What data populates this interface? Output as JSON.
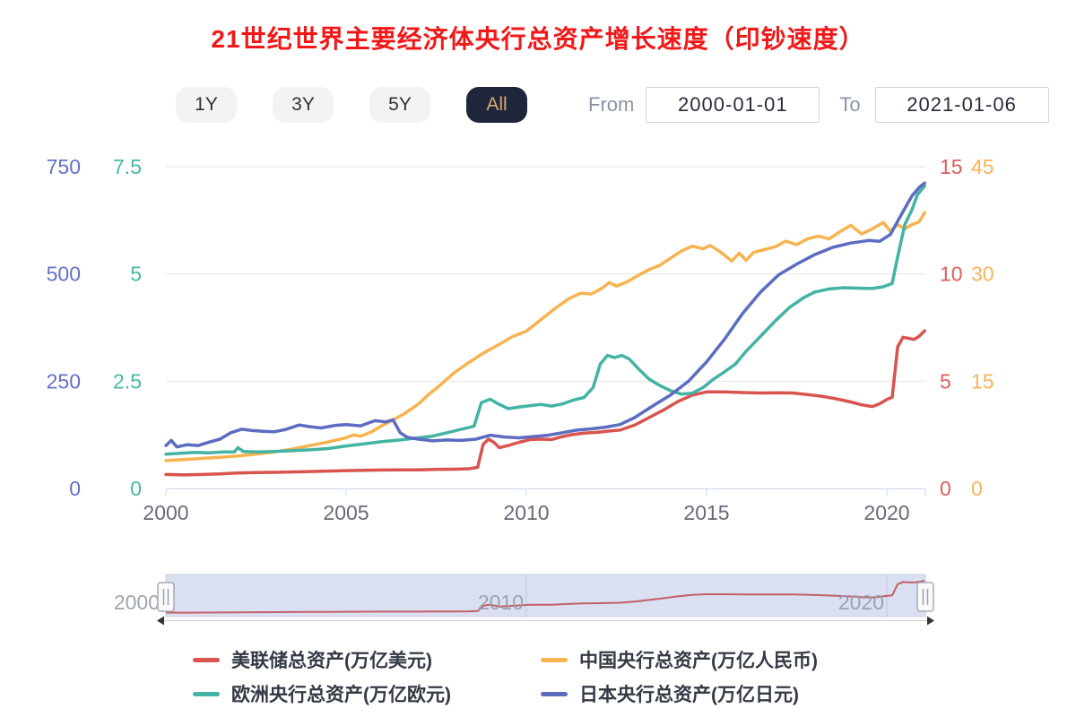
{
  "title": "21世纪世界主要经济体央行总资产增长速度（印钞速度）",
  "colors": {
    "title": "#f01818",
    "active_button_bg": "#20263a",
    "active_button_text": "#d9a873",
    "grid_line": "#e6e6e6",
    "axis_line": "#ccd6eb",
    "x_label": "#676b76",
    "nav_fill": "#dadff2",
    "nav_border": "#c9cfe0",
    "nav_label": "#99a0ac",
    "nav_series": "#c35f6b"
  },
  "controls": {
    "range_buttons": [
      {
        "label": "1Y",
        "active": false
      },
      {
        "label": "3Y",
        "active": false
      },
      {
        "label": "5Y",
        "active": false
      },
      {
        "label": "All",
        "active": true
      }
    ],
    "from_label": "From",
    "from_value": "2000-01-01",
    "to_label": "To",
    "to_value": "2021-01-06"
  },
  "chart_data": {
    "type": "line",
    "x_ticks": [
      "2000",
      "2005",
      "2010",
      "2015",
      "2020"
    ],
    "x_tick_years": [
      2000,
      2005,
      2010,
      2015,
      2020
    ],
    "x_range": [
      2000,
      2021.05
    ],
    "grid": true,
    "legend_position": "bottom",
    "axes": {
      "boj": {
        "side": "left-outer",
        "color": "#6470c8",
        "ticks": [
          "0",
          "250",
          "500",
          "750"
        ],
        "max": 750
      },
      "ecb": {
        "side": "left-inner",
        "color": "#47b8a8",
        "ticks": [
          "0",
          "2.5",
          "5",
          "7.5"
        ],
        "max": 7.5
      },
      "fed": {
        "side": "right-inner",
        "color": "#e05c5c",
        "ticks": [
          "0",
          "5",
          "10",
          "15"
        ],
        "max": 15
      },
      "pboc": {
        "side": "right-outer",
        "color": "#f9b35b",
        "ticks": [
          "0",
          "15",
          "30",
          "45"
        ],
        "max": 45
      }
    },
    "series": [
      {
        "key": "fed",
        "name": "美联储总资产(万亿美元)",
        "color": "#d9534f",
        "axis": "fed",
        "max": 15,
        "points": [
          [
            2000,
            0.65
          ],
          [
            2000.5,
            0.63
          ],
          [
            2001,
            0.65
          ],
          [
            2001.5,
            0.68
          ],
          [
            2002,
            0.72
          ],
          [
            2002.5,
            0.74
          ],
          [
            2003,
            0.75
          ],
          [
            2003.5,
            0.77
          ],
          [
            2004,
            0.79
          ],
          [
            2004.5,
            0.81
          ],
          [
            2005,
            0.83
          ],
          [
            2005.5,
            0.85
          ],
          [
            2006,
            0.86
          ],
          [
            2006.5,
            0.87
          ],
          [
            2007,
            0.87
          ],
          [
            2007.5,
            0.89
          ],
          [
            2008,
            0.9
          ],
          [
            2008.4,
            0.92
          ],
          [
            2008.65,
            0.98
          ],
          [
            2008.8,
            2.05
          ],
          [
            2008.95,
            2.3
          ],
          [
            2009.1,
            2.15
          ],
          [
            2009.25,
            1.9
          ],
          [
            2009.5,
            2.0
          ],
          [
            2009.8,
            2.15
          ],
          [
            2010.1,
            2.28
          ],
          [
            2010.4,
            2.3
          ],
          [
            2010.7,
            2.28
          ],
          [
            2011,
            2.42
          ],
          [
            2011.3,
            2.52
          ],
          [
            2011.6,
            2.58
          ],
          [
            2012,
            2.62
          ],
          [
            2012.3,
            2.68
          ],
          [
            2012.6,
            2.72
          ],
          [
            2013,
            2.95
          ],
          [
            2013.4,
            3.3
          ],
          [
            2013.8,
            3.65
          ],
          [
            2014.2,
            4.05
          ],
          [
            2014.6,
            4.35
          ],
          [
            2015,
            4.5
          ],
          [
            2015.5,
            4.5
          ],
          [
            2016,
            4.47
          ],
          [
            2016.5,
            4.45
          ],
          [
            2017,
            4.46
          ],
          [
            2017.4,
            4.45
          ],
          [
            2017.8,
            4.38
          ],
          [
            2018.2,
            4.3
          ],
          [
            2018.6,
            4.18
          ],
          [
            2019,
            4.03
          ],
          [
            2019.3,
            3.9
          ],
          [
            2019.6,
            3.82
          ],
          [
            2019.8,
            3.95
          ],
          [
            2020,
            4.15
          ],
          [
            2020.15,
            4.25
          ],
          [
            2020.3,
            6.6
          ],
          [
            2020.45,
            7.05
          ],
          [
            2020.6,
            7.0
          ],
          [
            2020.75,
            6.95
          ],
          [
            2020.9,
            7.1
          ],
          [
            2021.05,
            7.35
          ]
        ]
      },
      {
        "key": "pboc",
        "name": "中国央行总资产(万亿人民币)",
        "color": "#f7b34f",
        "axis": "pboc",
        "max": 45,
        "points": [
          [
            2000,
            3.9
          ],
          [
            2000.5,
            4.05
          ],
          [
            2001,
            4.2
          ],
          [
            2001.5,
            4.35
          ],
          [
            2002,
            4.55
          ],
          [
            2002.5,
            4.8
          ],
          [
            2003,
            5.1
          ],
          [
            2003.5,
            5.5
          ],
          [
            2004,
            6.0
          ],
          [
            2004.5,
            6.5
          ],
          [
            2005,
            7.1
          ],
          [
            2005.2,
            7.5
          ],
          [
            2005.4,
            7.3
          ],
          [
            2005.7,
            7.9
          ],
          [
            2006,
            8.8
          ],
          [
            2006.3,
            9.6
          ],
          [
            2006.6,
            10.4
          ],
          [
            2007,
            11.8
          ],
          [
            2007.3,
            13.2
          ],
          [
            2007.6,
            14.4
          ],
          [
            2008,
            16.2
          ],
          [
            2008.4,
            17.6
          ],
          [
            2008.8,
            18.9
          ],
          [
            2009.2,
            20.0
          ],
          [
            2009.6,
            21.2
          ],
          [
            2010,
            22.0
          ],
          [
            2010.4,
            23.6
          ],
          [
            2010.8,
            25.2
          ],
          [
            2011.2,
            26.6
          ],
          [
            2011.5,
            27.3
          ],
          [
            2011.8,
            27.2
          ],
          [
            2012.1,
            28.0
          ],
          [
            2012.3,
            28.8
          ],
          [
            2012.5,
            28.3
          ],
          [
            2012.8,
            28.9
          ],
          [
            2013.1,
            29.8
          ],
          [
            2013.4,
            30.6
          ],
          [
            2013.7,
            31.2
          ],
          [
            2014,
            32.2
          ],
          [
            2014.3,
            33.2
          ],
          [
            2014.6,
            33.9
          ],
          [
            2014.9,
            33.5
          ],
          [
            2015.1,
            34.0
          ],
          [
            2015.4,
            33.0
          ],
          [
            2015.7,
            31.8
          ],
          [
            2015.9,
            32.9
          ],
          [
            2016.1,
            31.9
          ],
          [
            2016.3,
            33.0
          ],
          [
            2016.6,
            33.4
          ],
          [
            2016.9,
            33.8
          ],
          [
            2017.2,
            34.6
          ],
          [
            2017.5,
            34.1
          ],
          [
            2017.8,
            34.9
          ],
          [
            2018.1,
            35.3
          ],
          [
            2018.4,
            34.9
          ],
          [
            2018.7,
            35.9
          ],
          [
            2019,
            36.8
          ],
          [
            2019.3,
            35.6
          ],
          [
            2019.6,
            36.3
          ],
          [
            2019.9,
            37.2
          ],
          [
            2020.1,
            36.0
          ],
          [
            2020.3,
            36.9
          ],
          [
            2020.5,
            36.3
          ],
          [
            2020.7,
            36.9
          ],
          [
            2020.9,
            37.3
          ],
          [
            2021.05,
            38.6
          ]
        ]
      },
      {
        "key": "ecb",
        "name": "欧洲央行总资产(万亿欧元)",
        "color": "#43b3a3",
        "axis": "ecb",
        "max": 7.5,
        "points": [
          [
            2000,
            0.8
          ],
          [
            2000.4,
            0.82
          ],
          [
            2000.8,
            0.84
          ],
          [
            2001.2,
            0.83
          ],
          [
            2001.6,
            0.85
          ],
          [
            2001.9,
            0.85
          ],
          [
            2002,
            0.95
          ],
          [
            2002.15,
            0.86
          ],
          [
            2002.5,
            0.85
          ],
          [
            2003,
            0.86
          ],
          [
            2003.5,
            0.88
          ],
          [
            2004,
            0.9
          ],
          [
            2004.5,
            0.93
          ],
          [
            2005,
            0.99
          ],
          [
            2005.5,
            1.04
          ],
          [
            2006,
            1.09
          ],
          [
            2006.5,
            1.13
          ],
          [
            2007,
            1.18
          ],
          [
            2007.4,
            1.22
          ],
          [
            2007.8,
            1.3
          ],
          [
            2008.2,
            1.38
          ],
          [
            2008.55,
            1.45
          ],
          [
            2008.75,
            2.0
          ],
          [
            2009,
            2.08
          ],
          [
            2009.2,
            1.98
          ],
          [
            2009.5,
            1.86
          ],
          [
            2009.8,
            1.9
          ],
          [
            2010.1,
            1.93
          ],
          [
            2010.4,
            1.96
          ],
          [
            2010.7,
            1.92
          ],
          [
            2011,
            1.97
          ],
          [
            2011.3,
            2.06
          ],
          [
            2011.6,
            2.12
          ],
          [
            2011.85,
            2.35
          ],
          [
            2012.05,
            2.9
          ],
          [
            2012.25,
            3.1
          ],
          [
            2012.45,
            3.05
          ],
          [
            2012.65,
            3.1
          ],
          [
            2012.85,
            3.02
          ],
          [
            2013.1,
            2.8
          ],
          [
            2013.4,
            2.55
          ],
          [
            2013.7,
            2.4
          ],
          [
            2014,
            2.28
          ],
          [
            2014.3,
            2.2
          ],
          [
            2014.6,
            2.22
          ],
          [
            2014.9,
            2.35
          ],
          [
            2015.2,
            2.55
          ],
          [
            2015.5,
            2.72
          ],
          [
            2015.8,
            2.9
          ],
          [
            2016.1,
            3.2
          ],
          [
            2016.5,
            3.55
          ],
          [
            2016.9,
            3.9
          ],
          [
            2017.3,
            4.22
          ],
          [
            2017.7,
            4.45
          ],
          [
            2018,
            4.58
          ],
          [
            2018.4,
            4.65
          ],
          [
            2018.8,
            4.68
          ],
          [
            2019.2,
            4.67
          ],
          [
            2019.6,
            4.66
          ],
          [
            2019.9,
            4.7
          ],
          [
            2020.15,
            4.78
          ],
          [
            2020.3,
            5.4
          ],
          [
            2020.5,
            6.15
          ],
          [
            2020.7,
            6.5
          ],
          [
            2020.85,
            6.85
          ],
          [
            2021.05,
            7.05
          ]
        ]
      },
      {
        "key": "boj",
        "name": "日本央行总资产(万亿日元)",
        "color": "#5c6cc0",
        "axis": "boj",
        "max": 750,
        "points": [
          [
            2000,
            100
          ],
          [
            2000.15,
            112
          ],
          [
            2000.3,
            97
          ],
          [
            2000.6,
            102
          ],
          [
            2000.9,
            100
          ],
          [
            2001.2,
            108
          ],
          [
            2001.5,
            115
          ],
          [
            2001.8,
            130
          ],
          [
            2002.1,
            138
          ],
          [
            2002.4,
            135
          ],
          [
            2002.7,
            133
          ],
          [
            2003,
            132
          ],
          [
            2003.3,
            137
          ],
          [
            2003.7,
            148
          ],
          [
            2004,
            144
          ],
          [
            2004.3,
            141
          ],
          [
            2004.7,
            147
          ],
          [
            2005,
            149
          ],
          [
            2005.4,
            146
          ],
          [
            2005.8,
            158
          ],
          [
            2006.1,
            155
          ],
          [
            2006.3,
            160
          ],
          [
            2006.5,
            130
          ],
          [
            2006.7,
            119
          ],
          [
            2007,
            115
          ],
          [
            2007.4,
            111
          ],
          [
            2007.8,
            113
          ],
          [
            2008.2,
            112
          ],
          [
            2008.6,
            115
          ],
          [
            2009,
            124
          ],
          [
            2009.4,
            120
          ],
          [
            2009.8,
            118
          ],
          [
            2010.2,
            121
          ],
          [
            2010.6,
            124
          ],
          [
            2011,
            130
          ],
          [
            2011.4,
            136
          ],
          [
            2011.8,
            139
          ],
          [
            2012.2,
            143
          ],
          [
            2012.6,
            149
          ],
          [
            2013,
            165
          ],
          [
            2013.5,
            192
          ],
          [
            2014,
            218
          ],
          [
            2014.5,
            250
          ],
          [
            2015,
            295
          ],
          [
            2015.5,
            348
          ],
          [
            2016,
            408
          ],
          [
            2016.5,
            458
          ],
          [
            2017,
            498
          ],
          [
            2017.5,
            523
          ],
          [
            2018,
            545
          ],
          [
            2018.5,
            562
          ],
          [
            2019,
            572
          ],
          [
            2019.5,
            578
          ],
          [
            2019.8,
            576
          ],
          [
            2020.1,
            592
          ],
          [
            2020.4,
            638
          ],
          [
            2020.7,
            682
          ],
          [
            2020.9,
            702
          ],
          [
            2021.05,
            712
          ]
        ]
      }
    ]
  },
  "navigator": {
    "labels": [
      "2000",
      "2010",
      "2020"
    ],
    "label_years": [
      2000,
      2010,
      2020
    ],
    "series_ref": "fed",
    "range_selected": "all"
  }
}
